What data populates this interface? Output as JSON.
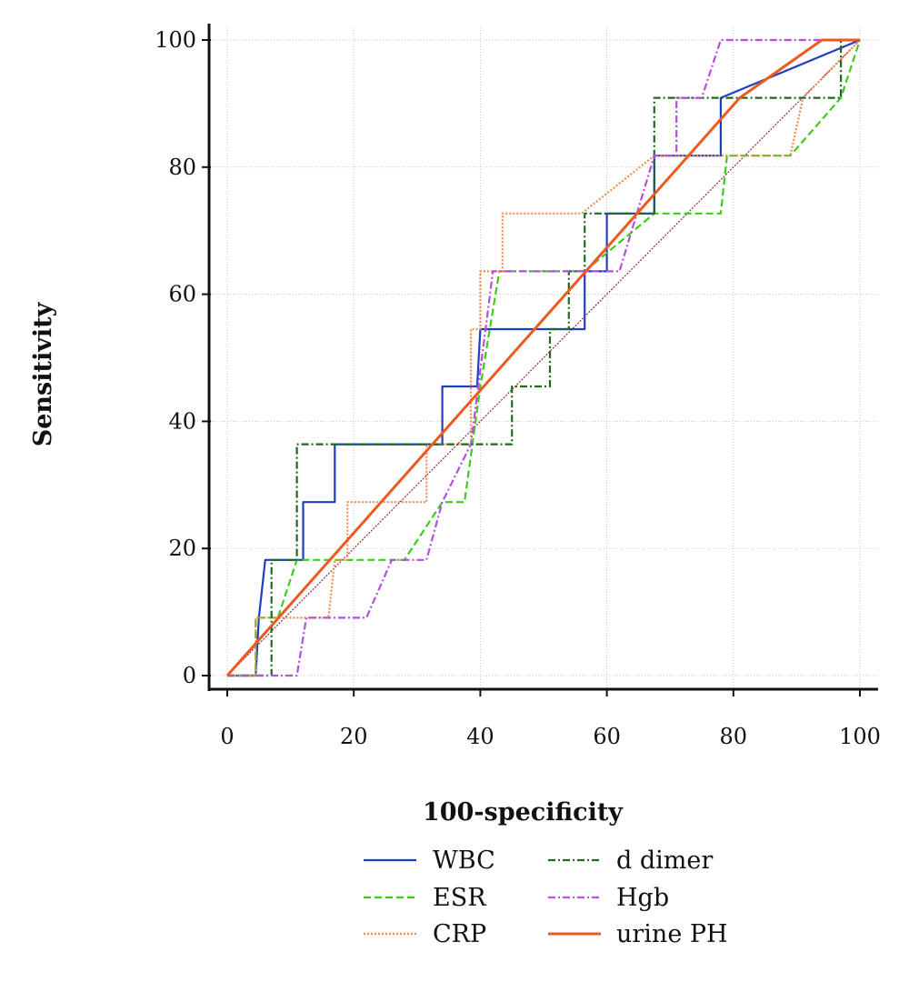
{
  "chart_data": {
    "type": "line",
    "title": "",
    "xlabel": "100-specificity",
    "ylabel": "Sensitivity",
    "xlim": [
      0,
      100
    ],
    "ylim": [
      0,
      100
    ],
    "x_ticks": [
      0,
      20,
      40,
      60,
      80,
      100
    ],
    "y_ticks": [
      0,
      20,
      40,
      60,
      80,
      100
    ],
    "grid": true,
    "legend_placement": "bottom",
    "reference_line": {
      "x": [
        0,
        100
      ],
      "y": [
        0,
        100
      ],
      "color": "#8b2c3c"
    },
    "series": [
      {
        "name": "WBC",
        "color": "#1f3fbf",
        "dash": "solid",
        "x": [
          0,
          4.5,
          5,
          6,
          12,
          12,
          17,
          17,
          34,
          34,
          34.5,
          39.5,
          40,
          56.5,
          56.5,
          60,
          60,
          67.5,
          67.5,
          78,
          78,
          100
        ],
        "y": [
          0,
          0,
          9.1,
          18.2,
          18.2,
          27.3,
          27.3,
          36.4,
          36.4,
          45.5,
          45.5,
          45.5,
          54.5,
          54.5,
          63.6,
          63.6,
          72.7,
          72.7,
          81.8,
          81.8,
          90.9,
          100
        ]
      },
      {
        "name": "ESR",
        "color": "#3ccc1a",
        "dash": "dashed",
        "x": [
          0,
          4.5,
          4.5,
          8,
          11,
          28,
          34,
          37.5,
          40,
          43,
          56.5,
          67.5,
          78,
          79,
          89,
          97,
          100
        ],
        "y": [
          0,
          0,
          9.1,
          9.1,
          18.2,
          18.2,
          27.3,
          27.3,
          45.5,
          63.6,
          63.6,
          72.7,
          72.7,
          81.8,
          81.8,
          90.9,
          100
        ]
      },
      {
        "name": "CRP",
        "color": "#f08a50",
        "dash": "dotted",
        "x": [
          0,
          4.5,
          4.5,
          16,
          17,
          19,
          19,
          31.5,
          31.5,
          38.5,
          38.5,
          40,
          40,
          43.5,
          43.5,
          56,
          67.5,
          89,
          91,
          100
        ],
        "y": [
          0,
          0,
          9.1,
          9.1,
          18.2,
          18.2,
          27.3,
          27.3,
          36.4,
          36.4,
          54.5,
          54.5,
          63.6,
          63.6,
          72.7,
          72.7,
          81.8,
          81.8,
          90.9,
          100
        ]
      },
      {
        "name": "d dimer",
        "color": "#1b6b1b",
        "dash": "dashdot",
        "x": [
          0,
          7,
          7,
          11,
          11,
          45,
          45,
          51,
          51,
          54,
          54,
          56.5,
          56.5,
          67.5,
          67.5,
          97,
          97,
          100
        ],
        "y": [
          0,
          0,
          18.2,
          18.2,
          36.4,
          36.4,
          45.5,
          45.5,
          54.5,
          54.5,
          63.6,
          63.6,
          72.7,
          72.7,
          90.9,
          90.9,
          100,
          100
        ]
      },
      {
        "name": "Hgb",
        "color": "#b84de0",
        "dash": "dashdot",
        "x": [
          0,
          11,
          12.5,
          22,
          26,
          31.5,
          34,
          38.5,
          42,
          62,
          67.5,
          71,
          71,
          75,
          78,
          100
        ],
        "y": [
          0,
          0,
          9.1,
          9.1,
          18.2,
          18.2,
          27.3,
          36.4,
          63.6,
          63.6,
          81.8,
          81.8,
          90.9,
          90.9,
          100,
          100
        ]
      },
      {
        "name": "urine PH",
        "color": "#ee5a1e",
        "dash": "solid-thick",
        "x": [
          0,
          81,
          94,
          100
        ],
        "y": [
          0,
          90.9,
          100,
          100
        ]
      }
    ]
  }
}
